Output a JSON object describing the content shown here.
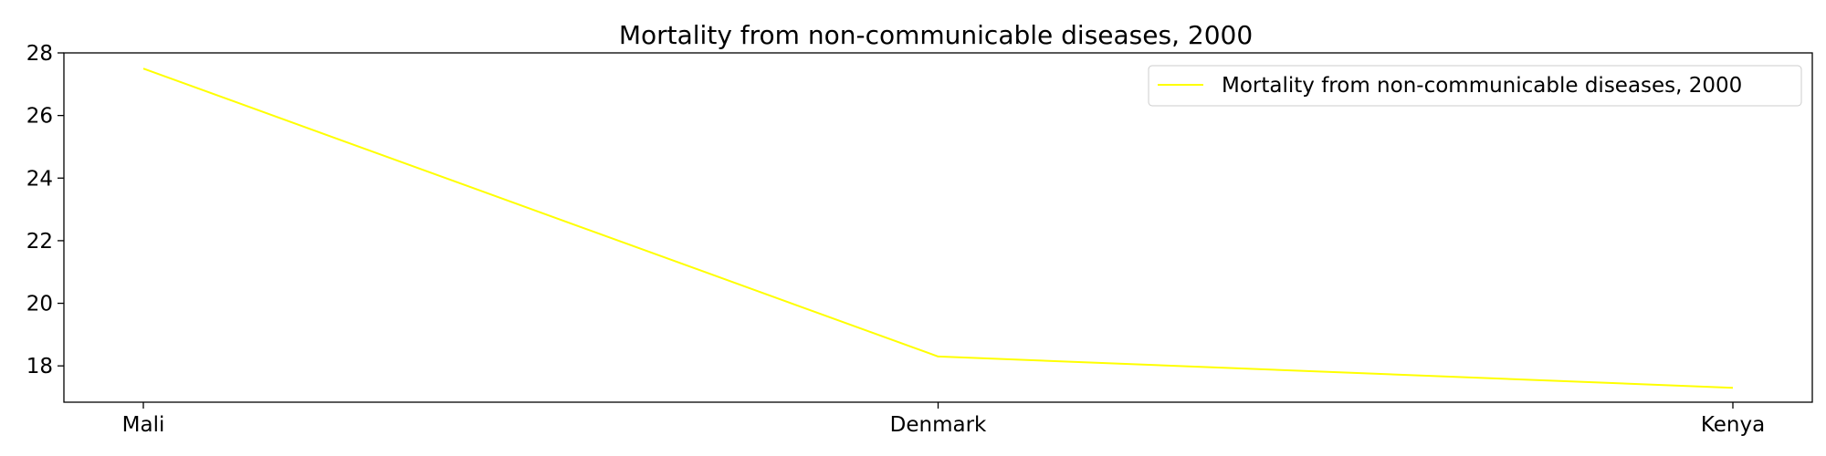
{
  "chart_data": {
    "type": "line",
    "title": "Mortality from non-communicable diseases, 2000",
    "xlabel": "",
    "ylabel": "",
    "categories": [
      "Mali",
      "Denmark",
      "Kenya"
    ],
    "series": [
      {
        "name": "Mortality from non-communicable diseases, 2000",
        "values": [
          27.5,
          18.3,
          17.3
        ],
        "color": "#ffff00"
      }
    ],
    "ylim": [
      16.84,
      28.0
    ],
    "yticks": [
      18,
      20,
      22,
      24,
      26,
      28
    ],
    "ytick_labels": [
      "18",
      "20",
      "22",
      "24",
      "26",
      "28"
    ],
    "grid": false,
    "legend": "top-right"
  }
}
